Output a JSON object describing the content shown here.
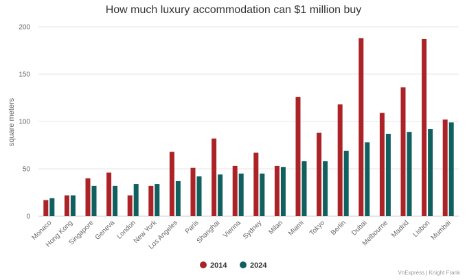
{
  "chart_data": {
    "type": "bar",
    "title": "How much luxury accommodation can $1 million buy",
    "xlabel": "",
    "ylabel": "square meters",
    "ylim": [
      0,
      200
    ],
    "yticks": [
      0,
      50,
      100,
      150,
      200
    ],
    "grid": true,
    "legend_position": "bottom-center",
    "categories": [
      "Monaco",
      "Hong Kong",
      "Singapore",
      "Geneva",
      "London",
      "New York",
      "Los Angeles",
      "Paris",
      "Shanghai",
      "Vienna",
      "Sydney",
      "Milan",
      "Miami",
      "Tokyo",
      "Berlin",
      "Dubai",
      "Melbourne",
      "Madrid",
      "Lisbon",
      "Mumbai"
    ],
    "series": [
      {
        "name": "2014",
        "color": "#ab2327",
        "values": [
          17,
          22,
          40,
          46,
          22,
          32,
          68,
          51,
          82,
          53,
          67,
          53,
          126,
          88,
          118,
          188,
          109,
          136,
          187,
          102
        ]
      },
      {
        "name": "2024",
        "color": "#10605f",
        "values": [
          19,
          22,
          32,
          32,
          34,
          34,
          37,
          42,
          44,
          45,
          45,
          52,
          58,
          58,
          69,
          78,
          87,
          89,
          92,
          99
        ]
      }
    ]
  },
  "source": "VnExpress | Knight Frank"
}
